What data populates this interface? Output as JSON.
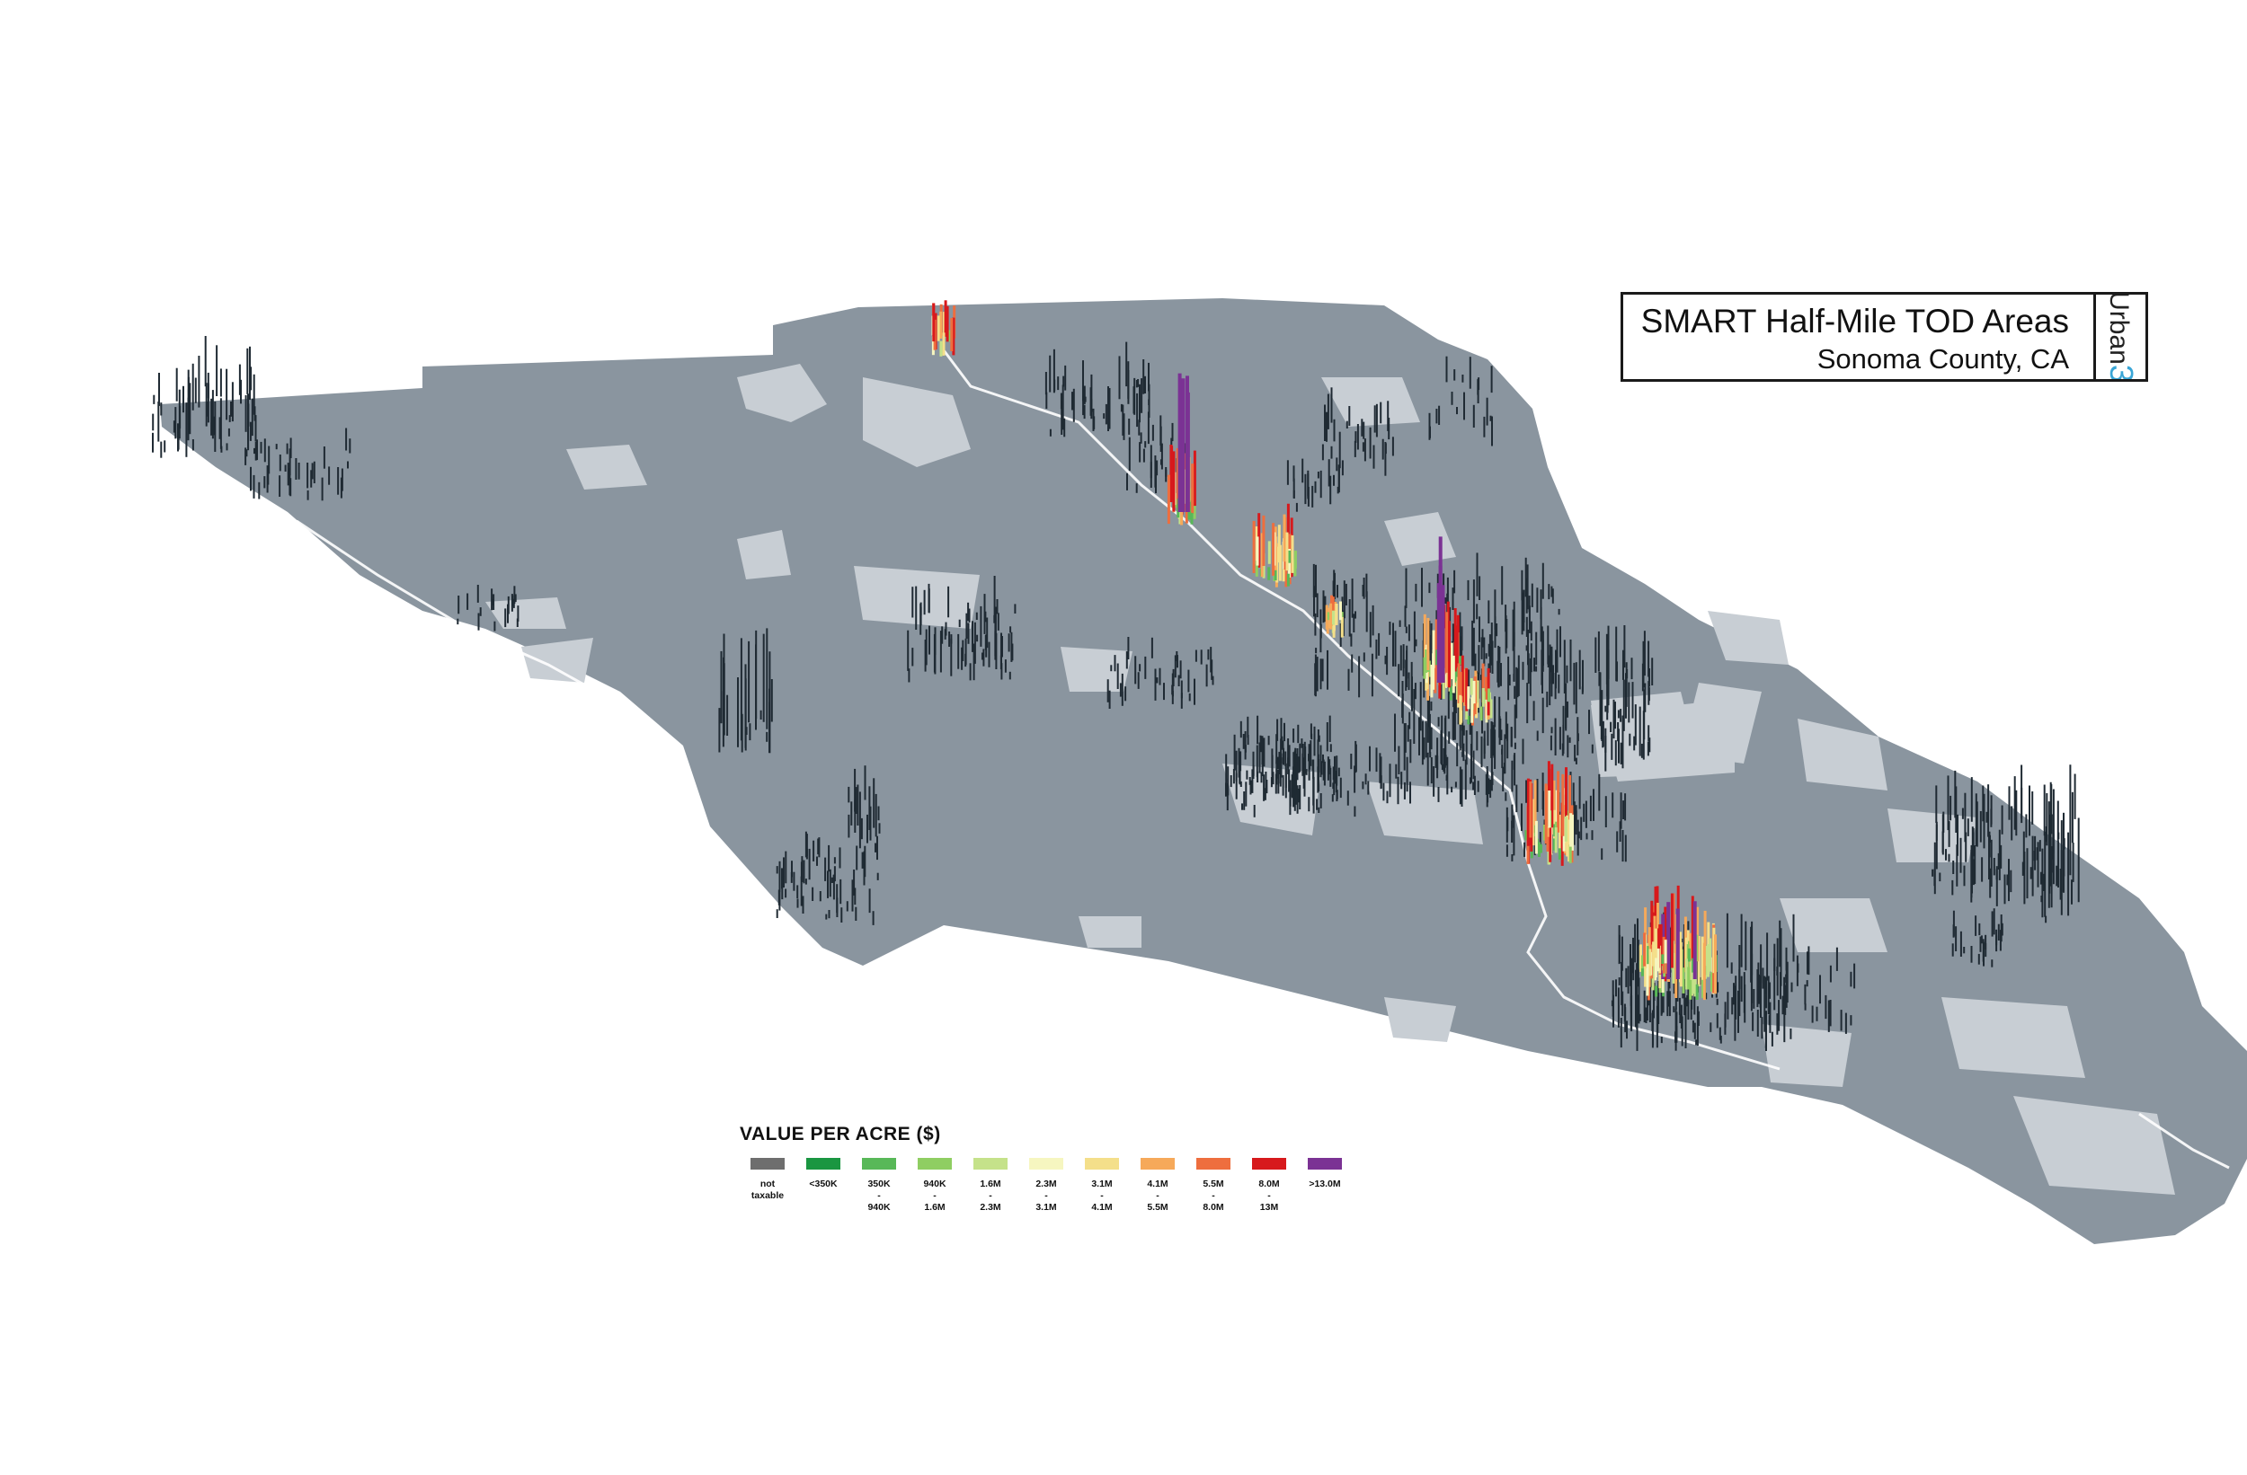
{
  "title": {
    "main": "SMART Half-Mile TOD Areas",
    "sub": "Sonoma County, CA"
  },
  "brand": {
    "name": "Urban",
    "num": "3"
  },
  "legend": {
    "title": "VALUE PER ACRE ($)",
    "items": [
      {
        "label": "not\ntaxable",
        "color": "#6e6e6e"
      },
      {
        "label": "<350K",
        "color": "#1a9641"
      },
      {
        "label": "350K\n-\n940K",
        "color": "#58b858"
      },
      {
        "label": "940K\n-\n1.6M",
        "color": "#8fce62"
      },
      {
        "label": "1.6M\n-\n2.3M",
        "color": "#c5e28a"
      },
      {
        "label": "2.3M\n-\n3.1M",
        "color": "#f6f6c0"
      },
      {
        "label": "3.1M\n-\n4.1M",
        "color": "#f4df8a"
      },
      {
        "label": "4.1M\n-\n5.5M",
        "color": "#f6a95a"
      },
      {
        "label": "5.5M\n-\n8.0M",
        "color": "#ee6e3e"
      },
      {
        "label": "8.0M\n-\n13M",
        "color": "#d7191c"
      },
      {
        "label": ">13.0M",
        "color": "#7b3294"
      }
    ]
  },
  "map": {
    "land_color": "#8a959f",
    "light_land_color": "#c8ced4",
    "dark_bar_color": "#1f2a33"
  }
}
